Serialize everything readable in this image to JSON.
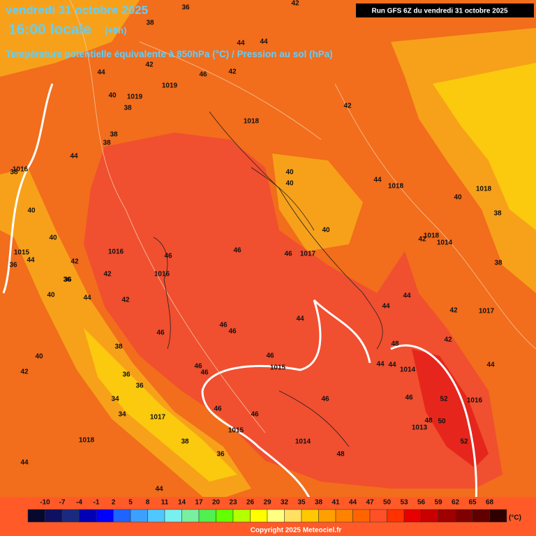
{
  "header": {
    "date": "vendredi 31 octobre 2025",
    "time": "16:00 locale",
    "offset": "(+9h)",
    "subtitle": "Température potentielle équivalente à 850hPa (°C) / Pression au sol (hPa)",
    "run": "Run GFS 6Z du vendredi 31 octobre 2025"
  },
  "map": {
    "isotherm_labels": [
      36,
      42,
      38,
      44,
      44,
      42,
      46,
      42,
      44,
      40,
      38,
      44,
      38,
      38,
      40,
      42,
      44,
      40,
      44,
      36,
      40,
      46,
      46,
      46,
      46,
      40,
      38,
      42,
      40,
      38,
      46,
      46,
      46,
      44,
      42,
      44,
      44,
      48,
      44,
      46,
      52,
      48,
      50,
      52,
      46,
      44,
      46,
      46,
      46,
      48,
      46,
      38,
      36,
      34,
      34,
      36,
      36,
      38,
      40,
      42,
      44,
      44,
      38,
      40,
      40,
      36,
      36,
      42,
      42,
      42,
      44,
      42,
      44
    ],
    "isobar_labels": [
      1019,
      1019,
      1018,
      1016,
      1016,
      1016,
      1015,
      1017,
      1018,
      1018,
      1018,
      1017,
      1014,
      1016,
      1013,
      1015,
      1015,
      1014,
      1017,
      1018,
      1014
    ]
  },
  "legend": {
    "ticks": [
      -10,
      -7,
      -4,
      -1,
      2,
      5,
      8,
      11,
      14,
      17,
      20,
      23,
      26,
      29,
      32,
      35,
      38,
      41,
      44,
      47,
      50,
      53,
      56,
      59,
      62,
      65,
      68
    ],
    "unit": "(°C)",
    "colors": [
      "#08082e",
      "#101060",
      "#1a2a80",
      "#0000b4",
      "#0000ff",
      "#1e64ff",
      "#3ca0ff",
      "#50c8ff",
      "#78f0f0",
      "#78f0a0",
      "#50f050",
      "#64ff00",
      "#b4ff00",
      "#ffff00",
      "#ffff80",
      "#ffe060",
      "#ffc800",
      "#ffa000",
      "#ff8200",
      "#ff6400",
      "#ff5028",
      "#ff3200",
      "#e60000",
      "#c80000",
      "#a00000",
      "#800000",
      "#600000",
      "#300000"
    ]
  },
  "footer": {
    "copyright": "Copyright 2025 Meteociel.fr"
  }
}
